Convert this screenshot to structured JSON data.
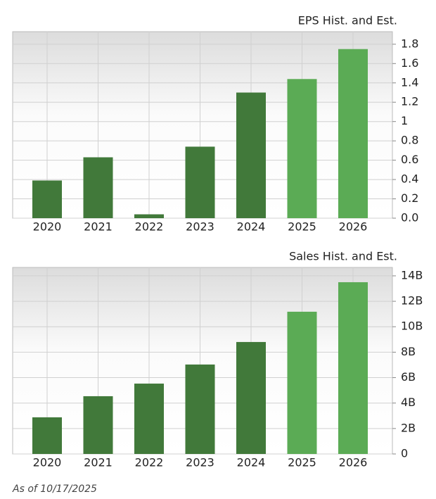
{
  "chart_data": [
    {
      "type": "bar",
      "title": "EPS Hist. and Est.",
      "categories": [
        "2020",
        "2021",
        "2022",
        "2023",
        "2024",
        "2025",
        "2026"
      ],
      "values": [
        0.39,
        0.63,
        0.04,
        0.74,
        1.3,
        1.44,
        1.75
      ],
      "colors": [
        "#41793a",
        "#41793a",
        "#41793a",
        "#41793a",
        "#41793a",
        "#5bab55",
        "#5bab55"
      ],
      "ylim": [
        0,
        1.93
      ],
      "yticks": [
        {
          "value": 0,
          "label": "0.0"
        },
        0.2,
        0.4,
        0.6,
        0.8,
        1,
        1.2,
        1.4,
        1.6,
        1.8
      ],
      "grid": true
    },
    {
      "type": "bar",
      "title": "Sales Hist. and Est.",
      "categories": [
        "2020",
        "2021",
        "2022",
        "2023",
        "2024",
        "2025",
        "2026"
      ],
      "values": [
        2.88,
        4.54,
        5.53,
        7.03,
        8.8,
        11.18,
        13.5
      ],
      "colors": [
        "#41793a",
        "#41793a",
        "#41793a",
        "#41793a",
        "#41793a",
        "#5bab55",
        "#5bab55"
      ],
      "ylim": [
        0,
        14.66
      ],
      "yticks": [
        0,
        {
          "value": 2,
          "label": "2B"
        },
        {
          "value": 4,
          "label": "4B"
        },
        {
          "value": 6,
          "label": "6B"
        },
        {
          "value": 8,
          "label": "8B"
        },
        {
          "value": 10,
          "label": "10B"
        },
        {
          "value": 12,
          "label": "12B"
        },
        {
          "value": 14,
          "label": "14B"
        }
      ],
      "grid": true
    }
  ],
  "footer": "As of 10/17/2025"
}
